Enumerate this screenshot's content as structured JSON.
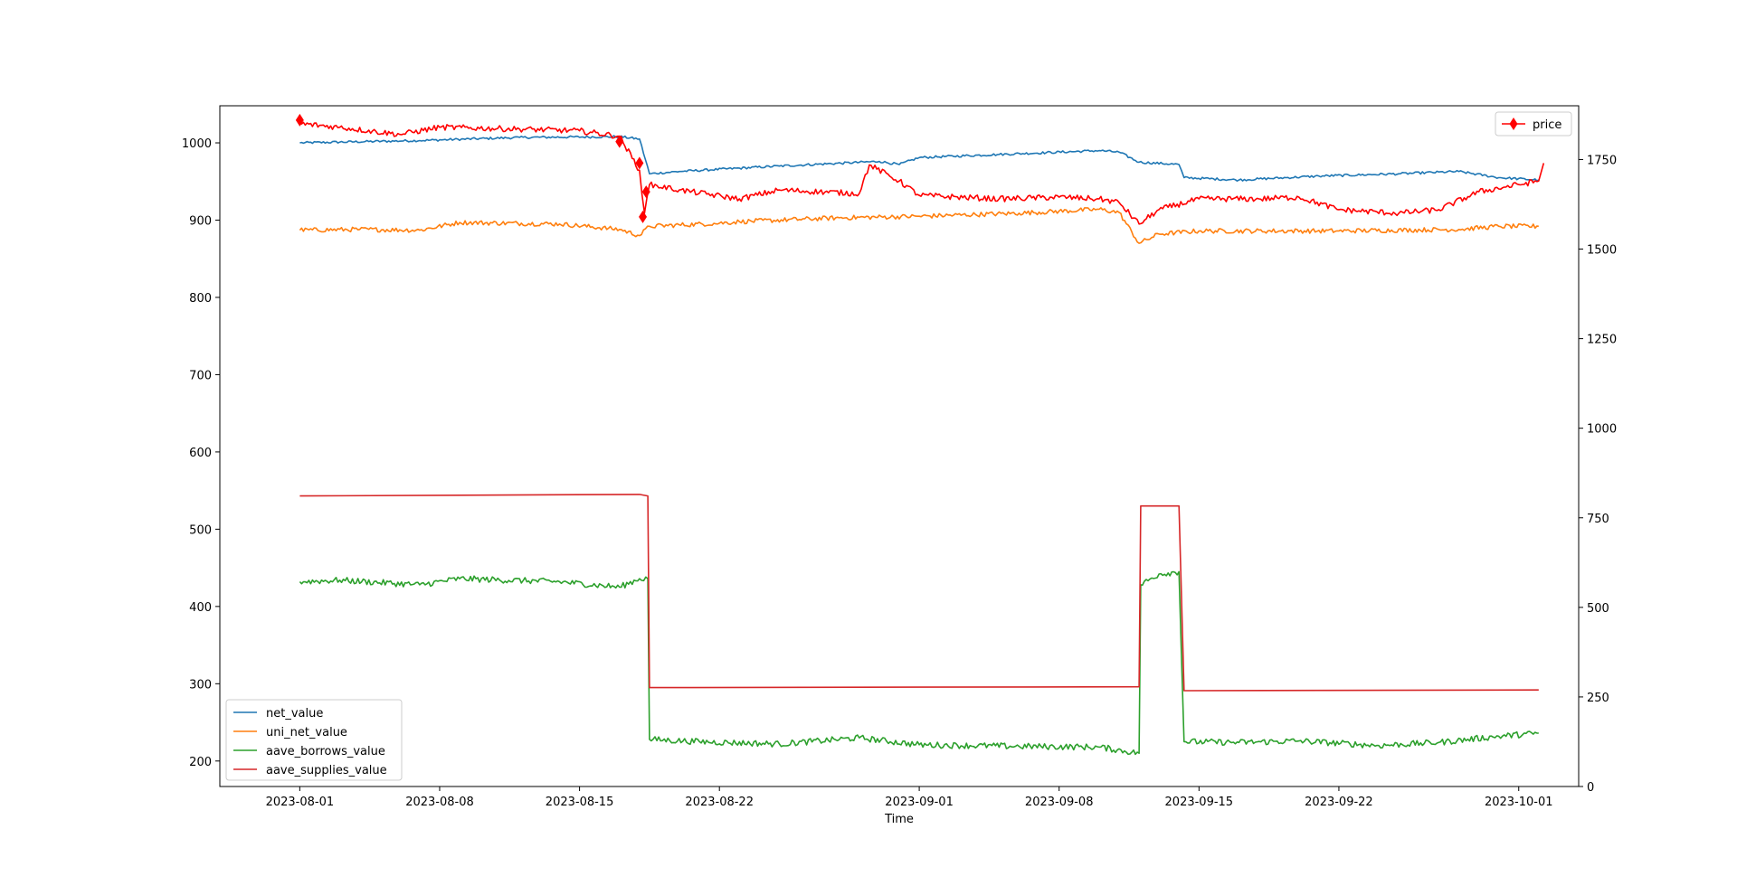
{
  "chart_data": {
    "type": "line",
    "title": "",
    "xlabel": "Time",
    "ylabel_left": "",
    "ylabel_right": "",
    "x_tick_labels": [
      "2023-08-01",
      "2023-08-08",
      "2023-08-15",
      "2023-08-22",
      "2023-09-01",
      "2023-09-08",
      "2023-09-15",
      "2023-09-22",
      "2023-10-01"
    ],
    "x_range": [
      "2023-07-28",
      "2023-10-04"
    ],
    "x_data_range": [
      "2023-08-01",
      "2023-10-02"
    ],
    "y_left": {
      "ylim": [
        167,
        1048
      ],
      "ticks": [
        200,
        300,
        400,
        500,
        600,
        700,
        800,
        900,
        1000
      ]
    },
    "y_right": {
      "ylim": [
        0,
        1900
      ],
      "ticks": [
        0,
        250,
        500,
        750,
        1000,
        1250,
        1500,
        1750
      ]
    },
    "grid": false,
    "legend_left": {
      "placement": "lower-left",
      "entries": [
        "net_value",
        "uni_net_value",
        "aave_borrows_value",
        "aave_supplies_value"
      ]
    },
    "legend_right": {
      "placement": "upper-right",
      "entries": [
        "price"
      ]
    },
    "series": [
      {
        "name": "net_value",
        "axis": "left",
        "color": "#1f77b4",
        "noise": 1.5,
        "points": [
          [
            "2023-08-01",
            1000
          ],
          [
            "2023-08-07",
            1003
          ],
          [
            "2023-08-12",
            1007
          ],
          [
            "2023-08-17",
            1008
          ],
          [
            "2023-08-18",
            1005
          ],
          [
            "2023-08-18T12",
            960
          ],
          [
            "2023-08-20",
            963
          ],
          [
            "2023-08-25",
            970
          ],
          [
            "2023-08-30",
            976
          ],
          [
            "2023-08-31",
            972
          ],
          [
            "2023-09-01",
            981
          ],
          [
            "2023-09-05",
            985
          ],
          [
            "2023-09-10",
            990
          ],
          [
            "2023-09-11",
            988
          ],
          [
            "2023-09-12",
            975
          ],
          [
            "2023-09-14",
            972
          ],
          [
            "2023-09-14T06",
            955
          ],
          [
            "2023-09-17",
            952
          ],
          [
            "2023-09-21",
            957
          ],
          [
            "2023-09-25",
            960
          ],
          [
            "2023-09-28",
            963
          ],
          [
            "2023-09-30",
            955
          ],
          [
            "2023-10-02",
            952
          ]
        ]
      },
      {
        "name": "uni_net_value",
        "axis": "left",
        "color": "#ff7f0e",
        "noise": 3,
        "points": [
          [
            "2023-08-01",
            887
          ],
          [
            "2023-08-04",
            888
          ],
          [
            "2023-08-07",
            887
          ],
          [
            "2023-08-09",
            897
          ],
          [
            "2023-08-14",
            895
          ],
          [
            "2023-08-17",
            888
          ],
          [
            "2023-08-18",
            880
          ],
          [
            "2023-08-18T12",
            892
          ],
          [
            "2023-08-22",
            896
          ],
          [
            "2023-08-23",
            898
          ],
          [
            "2023-08-28",
            903
          ],
          [
            "2023-09-01",
            905
          ],
          [
            "2023-09-06",
            909
          ],
          [
            "2023-09-10",
            914
          ],
          [
            "2023-09-11",
            910
          ],
          [
            "2023-09-12",
            870
          ],
          [
            "2023-09-13",
            882
          ],
          [
            "2023-09-15",
            886
          ],
          [
            "2023-09-22",
            886
          ],
          [
            "2023-09-28",
            888
          ],
          [
            "2023-09-30",
            892
          ],
          [
            "2023-10-02",
            892
          ]
        ]
      },
      {
        "name": "aave_borrows_value",
        "axis": "left",
        "color": "#2ca02c",
        "noise": 4,
        "points": [
          [
            "2023-08-01",
            432
          ],
          [
            "2023-08-03",
            434
          ],
          [
            "2023-08-07",
            428
          ],
          [
            "2023-08-09",
            436
          ],
          [
            "2023-08-14",
            432
          ],
          [
            "2023-08-17",
            425
          ],
          [
            "2023-08-18",
            436
          ],
          [
            "2023-08-18T10",
            436
          ],
          [
            "2023-08-18T12",
            228
          ],
          [
            "2023-08-21",
            225
          ],
          [
            "2023-08-25",
            222
          ],
          [
            "2023-08-29",
            230
          ],
          [
            "2023-09-01",
            221
          ],
          [
            "2023-09-06",
            219
          ],
          [
            "2023-09-10",
            218
          ],
          [
            "2023-09-12",
            210
          ],
          [
            "2023-09-12T02",
            428
          ],
          [
            "2023-09-13",
            442
          ],
          [
            "2023-09-14",
            445
          ],
          [
            "2023-09-14T06",
            225
          ],
          [
            "2023-09-17",
            224
          ],
          [
            "2023-09-20",
            226
          ],
          [
            "2023-09-24",
            220
          ],
          [
            "2023-09-27",
            224
          ],
          [
            "2023-09-30",
            232
          ],
          [
            "2023-10-02",
            236
          ]
        ]
      },
      {
        "name": "aave_supplies_value",
        "axis": "left",
        "color": "#d62728",
        "noise": 0,
        "points": [
          [
            "2023-08-01",
            543
          ],
          [
            "2023-08-18",
            545
          ],
          [
            "2023-08-18T10",
            543
          ],
          [
            "2023-08-18T12",
            295
          ],
          [
            "2023-09-12",
            296
          ],
          [
            "2023-09-12T02",
            530
          ],
          [
            "2023-09-14",
            530
          ],
          [
            "2023-09-14T06",
            291
          ],
          [
            "2023-10-02",
            292
          ]
        ]
      },
      {
        "name": "price",
        "axis": "right",
        "color": "#ff0000",
        "noise": 8,
        "points": [
          [
            "2023-08-01",
            1850
          ],
          [
            "2023-08-03",
            1840
          ],
          [
            "2023-08-06",
            1820
          ],
          [
            "2023-08-08",
            1840
          ],
          [
            "2023-08-12",
            1835
          ],
          [
            "2023-08-15",
            1830
          ],
          [
            "2023-08-17",
            1815
          ],
          [
            "2023-08-18",
            1720
          ],
          [
            "2023-08-18T06",
            1600
          ],
          [
            "2023-08-18T12",
            1680
          ],
          [
            "2023-08-20",
            1665
          ],
          [
            "2023-08-23",
            1640
          ],
          [
            "2023-08-25",
            1665
          ],
          [
            "2023-08-29",
            1655
          ],
          [
            "2023-08-29T12",
            1735
          ],
          [
            "2023-08-31",
            1690
          ],
          [
            "2023-09-01",
            1650
          ],
          [
            "2023-09-05",
            1640
          ],
          [
            "2023-09-08",
            1645
          ],
          [
            "2023-09-10",
            1640
          ],
          [
            "2023-09-11",
            1630
          ],
          [
            "2023-09-12",
            1570
          ],
          [
            "2023-09-13",
            1610
          ],
          [
            "2023-09-15",
            1640
          ],
          [
            "2023-09-18",
            1640
          ],
          [
            "2023-09-20",
            1645
          ],
          [
            "2023-09-22",
            1610
          ],
          [
            "2023-09-25",
            1600
          ],
          [
            "2023-09-27",
            1610
          ],
          [
            "2023-09-29",
            1660
          ],
          [
            "2023-10-01",
            1680
          ],
          [
            "2023-10-02",
            1690
          ],
          [
            "2023-10-02T06",
            1740
          ]
        ]
      }
    ],
    "price_markers": [
      [
        "2023-08-01",
        1860
      ],
      [
        "2023-08-17",
        1800
      ],
      [
        "2023-08-18",
        1740
      ],
      [
        "2023-08-18T04",
        1590
      ],
      [
        "2023-08-18T08",
        1660
      ]
    ]
  }
}
